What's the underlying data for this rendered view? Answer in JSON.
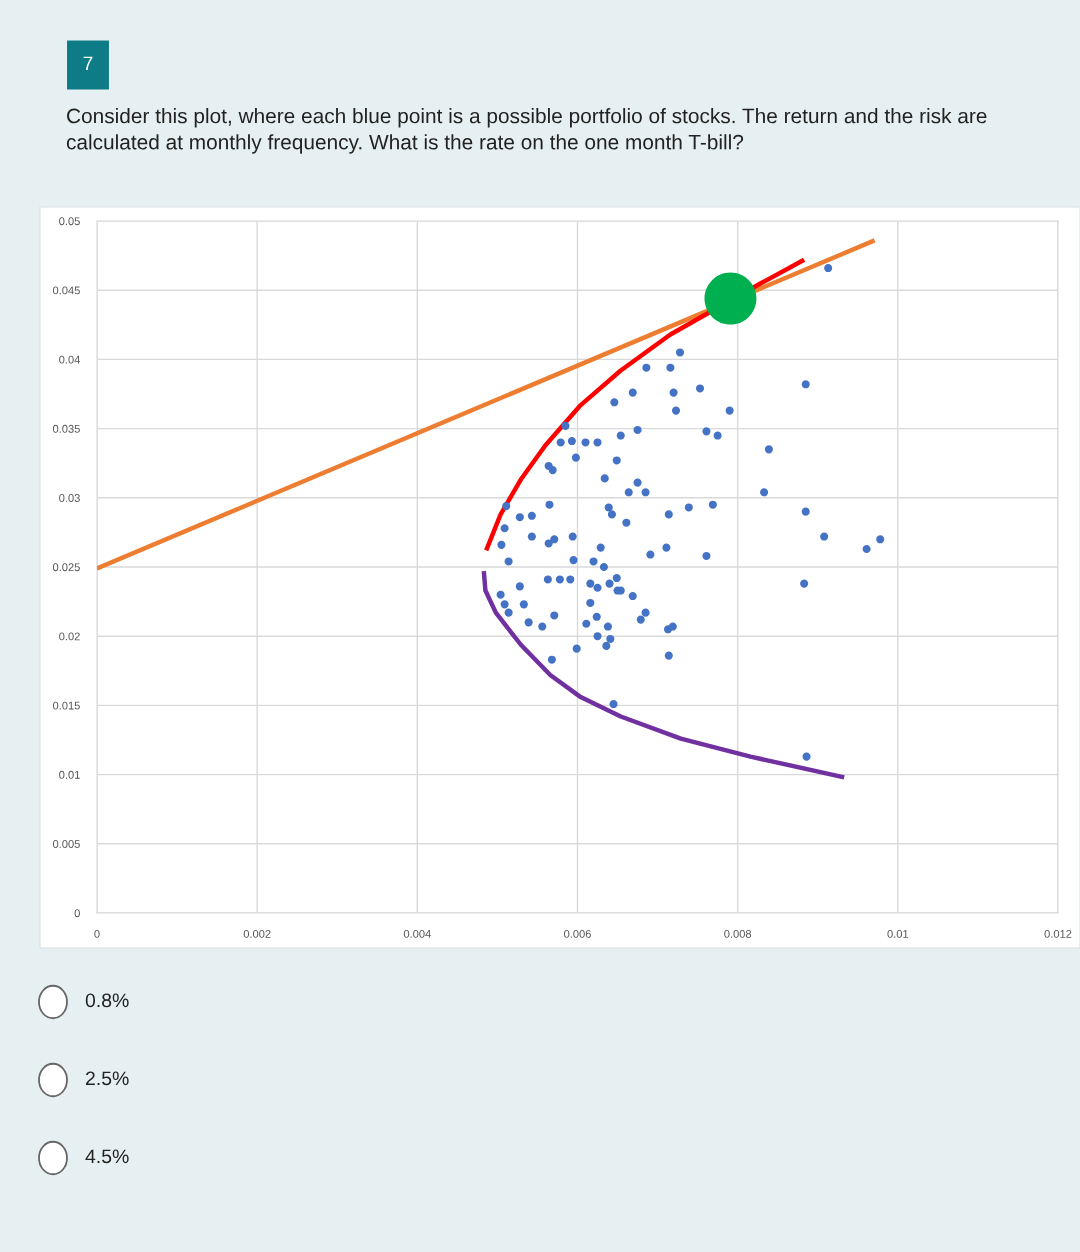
{
  "chart_data": {
    "type": "scatter",
    "title": "Consider this plot, where each blue point is a possible portfolio of stocks. The return and the risk are calculated at monthly frequency. What is the rate on the one month T-bill?",
    "annotations": [
      "7",
      "0.8%",
      "2.5%",
      "4.5%"
    ],
    "xlim": [
      0,
      0.012
    ],
    "xticks": [
      0,
      0.002,
      0.004,
      0.006,
      0.008,
      0.01,
      0.012
    ],
    "ylim": [
      0,
      0.05
    ],
    "yticks": [
      0,
      0.005,
      0.01,
      0.015,
      0.02,
      0.025,
      0.03,
      0.035,
      0.04,
      0.045,
      0.05
    ],
    "grid": true,
    "legend": false,
    "series": [
      {
        "type": "line",
        "color": "#ed7d31",
        "x": [
          0,
          0.00971
        ],
        "values": [
          0.0249,
          0.0486
        ]
      },
      {
        "type": "line",
        "color": "#ff0000",
        "x": [
          0.00486,
          0.00504,
          0.00529,
          0.0056,
          0.00604,
          0.00654,
          0.00716,
          0.00829,
          0.00883
        ],
        "values": [
          0.0262,
          0.0288,
          0.0313,
          0.0338,
          0.0367,
          0.0392,
          0.0418,
          0.0455,
          0.0472
        ]
      },
      {
        "type": "line",
        "color": "#7030a0",
        "x": [
          0.00483,
          0.00485,
          0.00498,
          0.00529,
          0.00566,
          0.00604,
          0.00654,
          0.00729,
          0.00816,
          0.00933
        ],
        "values": [
          0.0247,
          0.0233,
          0.0217,
          0.0194,
          0.0172,
          0.0156,
          0.0142,
          0.0126,
          0.0113,
          0.0098
        ]
      },
      {
        "marker": "circle",
        "color": "#4472c4",
        "x": [
          0.00913,
          0.00728,
          0.00686,
          0.00716,
          0.00669,
          0.0072,
          0.00753,
          0.00646,
          0.00723,
          0.0079,
          0.00885,
          0.00675,
          0.00654,
          0.00761,
          0.00775,
          0.00579,
          0.00593,
          0.0061,
          0.00625,
          0.00585,
          0.00598,
          0.00649,
          0.00839,
          0.00564,
          0.00569,
          0.00634,
          0.00664,
          0.00675,
          0.00685,
          0.00714,
          0.00739,
          0.00769,
          0.00833,
          0.00885,
          0.00511,
          0.00528,
          0.00543,
          0.00565,
          0.00509,
          0.00543,
          0.00564,
          0.00571,
          0.00594,
          0.00639,
          0.00643,
          0.00661,
          0.00691,
          0.00711,
          0.00761,
          0.00908,
          0.00961,
          0.00978,
          0.00505,
          0.00514,
          0.00595,
          0.0062,
          0.00629,
          0.00633,
          0.00563,
          0.00578,
          0.00591,
          0.00616,
          0.00625,
          0.0064,
          0.00649,
          0.0065,
          0.00654,
          0.00528,
          0.00504,
          0.00509,
          0.00514,
          0.00533,
          0.00669,
          0.00679,
          0.00685,
          0.00883,
          0.00539,
          0.00556,
          0.00571,
          0.00611,
          0.00624,
          0.00616,
          0.00638,
          0.00636,
          0.00625,
          0.00641,
          0.00713,
          0.00719,
          0.00714,
          0.00599,
          0.00568,
          0.00645,
          0.00886
        ],
        "values": [
          0.0466,
          0.0405,
          0.0394,
          0.0394,
          0.0376,
          0.0376,
          0.0379,
          0.0369,
          0.0363,
          0.0363,
          0.0382,
          0.0349,
          0.0345,
          0.0348,
          0.0345,
          0.034,
          0.0341,
          0.034,
          0.034,
          0.0352,
          0.0329,
          0.0327,
          0.0335,
          0.0323,
          0.032,
          0.0314,
          0.0304,
          0.0311,
          0.0304,
          0.0288,
          0.0293,
          0.0295,
          0.0304,
          0.029,
          0.0294,
          0.0286,
          0.0287,
          0.0295,
          0.0278,
          0.0272,
          0.0267,
          0.027,
          0.0272,
          0.0293,
          0.0288,
          0.0282,
          0.0259,
          0.0264,
          0.0258,
          0.0272,
          0.0263,
          0.027,
          0.0266,
          0.0254,
          0.0255,
          0.0254,
          0.0264,
          0.025,
          0.0241,
          0.0241,
          0.0241,
          0.0238,
          0.0235,
          0.0238,
          0.0242,
          0.0233,
          0.0233,
          0.0236,
          0.023,
          0.0223,
          0.0217,
          0.0223,
          0.0229,
          0.0212,
          0.0217,
          0.0238,
          0.021,
          0.0207,
          0.0215,
          0.0209,
          0.0214,
          0.0224,
          0.0207,
          0.0193,
          0.02,
          0.0198,
          0.0205,
          0.0207,
          0.0186,
          0.0191,
          0.0183,
          0.0151,
          0.0113
        ]
      },
      {
        "type": "bubble",
        "color": "#00b050",
        "x": [
          0.00791
        ],
        "values": [
          0.0444
        ],
        "sizes": [
          1
        ]
      }
    ]
  }
}
